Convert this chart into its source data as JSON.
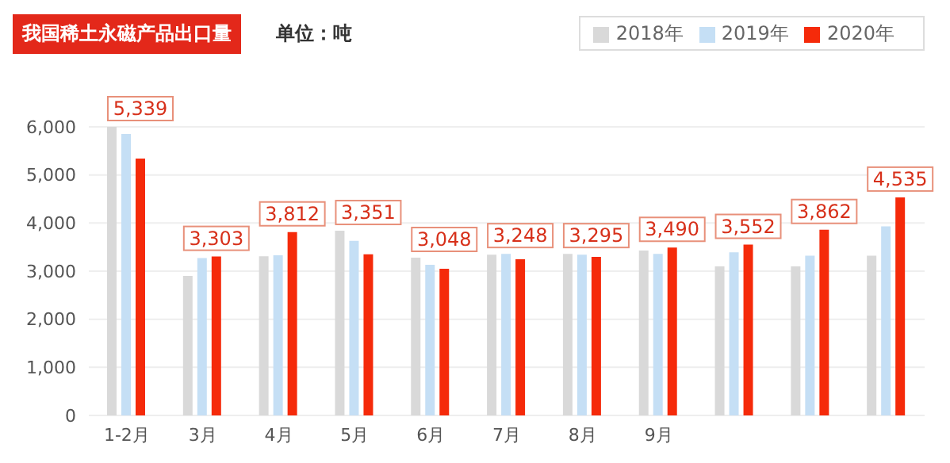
{
  "chart_data": {
    "type": "bar",
    "title": "我国稀土永磁产品出口量",
    "subtitle": "单位：吨",
    "categories": [
      "1-2月",
      "3月",
      "4月",
      "5月",
      "6月",
      "7月",
      "8月",
      "9月",
      null,
      null,
      null
    ],
    "series": [
      {
        "name": "2018年",
        "color": "#d9d9d9",
        "values": [
          6000,
          2900,
          3310,
          3840,
          3280,
          3340,
          3360,
          3430,
          3100,
          3100,
          3320
        ]
      },
      {
        "name": "2019年",
        "color": "#c5dff5",
        "values": [
          5850,
          3270,
          3330,
          3630,
          3130,
          3360,
          3340,
          3360,
          3390,
          3320,
          3930
        ]
      },
      {
        "name": "2020年",
        "color": "#f52a0a",
        "values": [
          5339,
          3303,
          3812,
          3351,
          3048,
          3248,
          3295,
          3490,
          3552,
          3862,
          4535
        ],
        "value_labels": [
          "5,339",
          "3,303",
          "3,812",
          "3,351",
          "3,048",
          "3,248",
          "3,295",
          "3,490",
          "3,552",
          "3,862",
          "4,535"
        ]
      }
    ],
    "ylim": [
      0,
      6000
    ],
    "yticks": [
      0,
      {
        "value": 1000,
        "label": "1,000"
      },
      {
        "value": 2000,
        "label": "2,000"
      },
      {
        "value": 3000,
        "label": "3,000"
      },
      {
        "value": 4000,
        "label": "4,000"
      },
      {
        "value": 5000,
        "label": "5,000"
      },
      {
        "value": 6000,
        "label": "6,000"
      }
    ],
    "grid": "y",
    "legend": "top right"
  }
}
